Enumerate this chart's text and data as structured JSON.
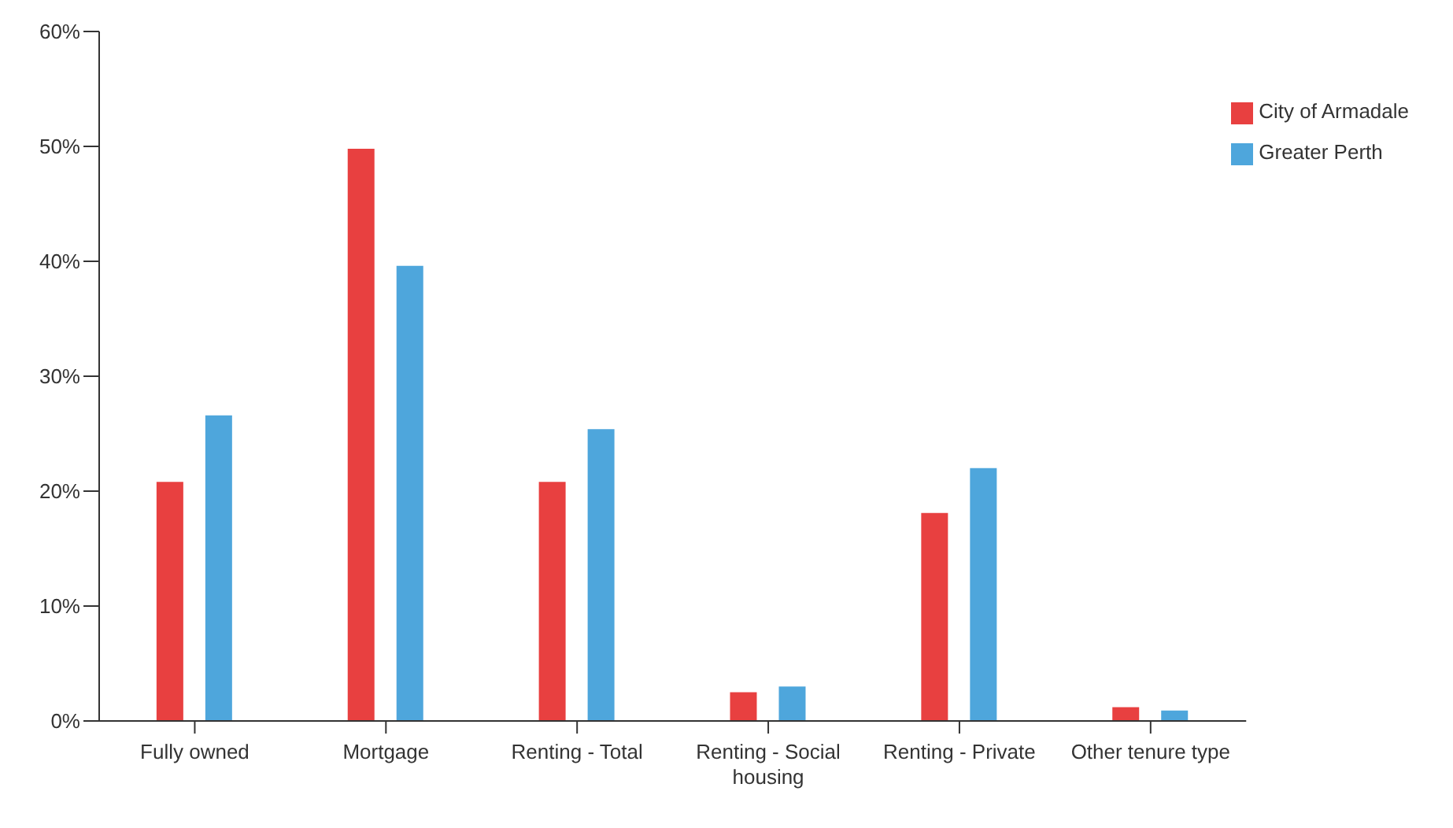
{
  "chart_data": {
    "type": "bar",
    "categories": [
      "Fully owned",
      "Mortgage",
      "Renting - Total",
      "Renting - Social housing",
      "Renting - Private",
      "Other tenure type"
    ],
    "series": [
      {
        "name": "City of Armadale",
        "color": "#e84040",
        "values": [
          20.8,
          49.8,
          20.8,
          2.5,
          18.1,
          1.2
        ]
      },
      {
        "name": "Greater Perth",
        "color": "#4ea6dc",
        "values": [
          26.6,
          39.6,
          25.4,
          3.0,
          22.0,
          0.9
        ]
      }
    ],
    "ylim": [
      0,
      60
    ],
    "yticks": [
      {
        "value": 0,
        "label": "0%"
      },
      {
        "value": 10,
        "label": "10%"
      },
      {
        "value": 20,
        "label": "20%"
      },
      {
        "value": 30,
        "label": "30%"
      },
      {
        "value": 40,
        "label": "40%"
      },
      {
        "value": 50,
        "label": "50%"
      },
      {
        "value": 60,
        "label": "60%"
      }
    ],
    "grid": false,
    "legend": "top right"
  }
}
